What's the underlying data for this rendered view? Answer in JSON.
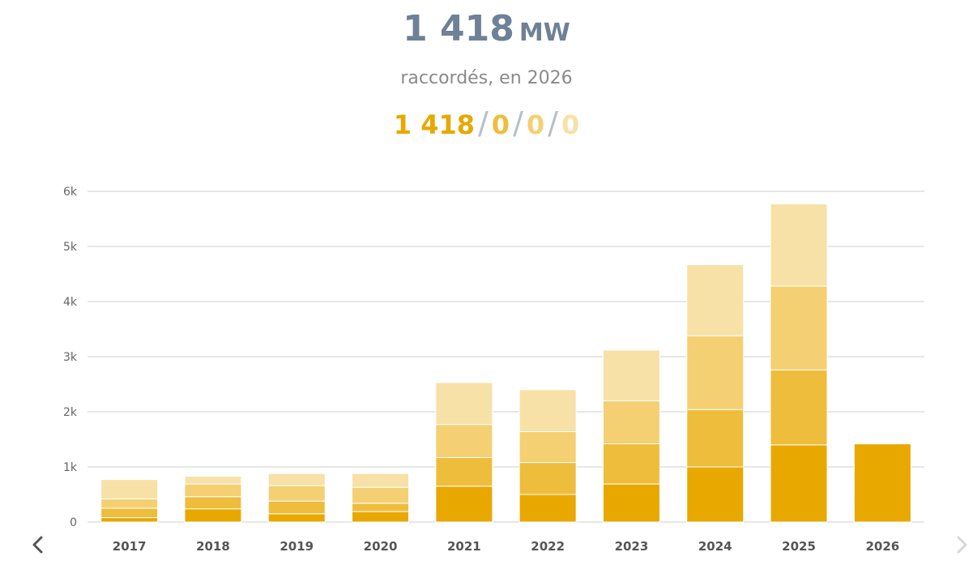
{
  "header": {
    "total_value": "1 418",
    "total_unit": "MW",
    "subtitle": "raccordés, en 2026",
    "breakdown": [
      "1 418",
      "0",
      "0",
      "0"
    ],
    "separator": "/"
  },
  "colors": {
    "title": "#6e8196",
    "segments": [
      "#e8a800",
      "#efbd3c",
      "#f4d073",
      "#f8e1a6"
    ],
    "grid": "#cfcfcf",
    "nav_active": "#555555",
    "nav_disabled": "#d6d6d6"
  },
  "navigation": {
    "prev_icon": "chevron-left-icon",
    "next_icon": "chevron-right-icon",
    "next_disabled": true
  },
  "chart_data": {
    "type": "bar",
    "stacked": true,
    "categories": [
      "2017",
      "2018",
      "2019",
      "2020",
      "2021",
      "2022",
      "2023",
      "2024",
      "2025",
      "2026"
    ],
    "series": [
      {
        "values": [
          80,
          240,
          150,
          190,
          650,
          500,
          690,
          1000,
          1400,
          1418
        ]
      },
      {
        "values": [
          170,
          220,
          230,
          150,
          520,
          580,
          730,
          1040,
          1360,
          0
        ]
      },
      {
        "values": [
          170,
          230,
          280,
          290,
          600,
          560,
          780,
          1340,
          1520,
          0
        ]
      },
      {
        "values": [
          350,
          140,
          220,
          250,
          760,
          760,
          920,
          1290,
          1490,
          0
        ]
      }
    ],
    "ylim": [
      0,
      6000
    ],
    "yticks": [
      0,
      1000,
      2000,
      3000,
      4000,
      5000,
      6000
    ],
    "ytick_labels": [
      "0",
      "1k",
      "2k",
      "3k",
      "4k",
      "5k",
      "6k"
    ],
    "grid": true,
    "legend": "none"
  }
}
